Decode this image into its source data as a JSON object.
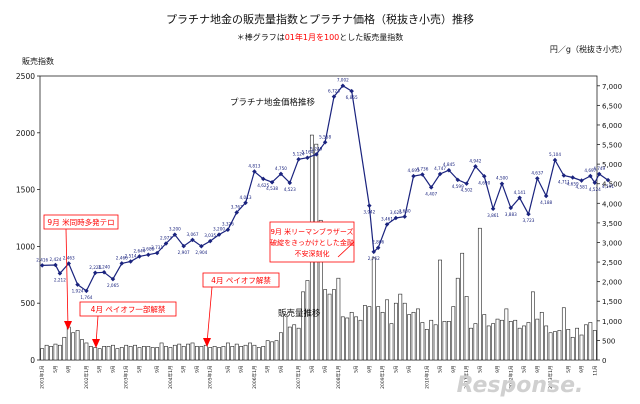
{
  "chart_data": {
    "type": "bar+line",
    "title": "プラチナ地金の販売量指数とプラチナ価格（税抜き小売）推移",
    "subtitle_parts": [
      "＊棒グラフは",
      "01年1月を100",
      "とした販売量指数"
    ],
    "y_left_label": "販売指数",
    "y_right_label": "円／g（税抜き小売）",
    "y_left_ticks": [
      "0",
      "500",
      "1000",
      "1500",
      "2000",
      "2500"
    ],
    "y_right_ticks": [
      "0",
      "500",
      "1,000",
      "1,500",
      "2,000",
      "2,500",
      "3,000",
      "3,500",
      "4,000",
      "4,500",
      "5,000",
      "5,500",
      "6,000",
      "6,500",
      "7,000"
    ],
    "y_left_range": [
      0,
      2500
    ],
    "y_right_range": [
      0,
      7250
    ],
    "x_ticks": [
      "2001年1月",
      "5月",
      "9月",
      "2002年1月",
      "5月",
      "9月",
      "2003年1月",
      "5月",
      "9月",
      "2004年1月",
      "5月",
      "9月",
      "2005年1月",
      "5月",
      "9月",
      "2006年1月",
      "5月",
      "9月",
      "2007年1月",
      "5月",
      "9月",
      "2008年1月",
      "5月",
      "9月",
      "2009年1月",
      "5月",
      "9月",
      "2010年1月",
      "5月",
      "9月",
      "2011年1月",
      "5月",
      "9月",
      "2012年1月",
      "5月",
      "9月",
      "2013年1月",
      "5月",
      "9月",
      "11月"
    ],
    "sales_index": [
      100,
      130,
      120,
      140,
      130,
      200,
      290,
      240,
      260,
      180,
      150,
      120,
      110,
      100,
      120,
      120,
      130,
      100,
      110,
      130,
      120,
      130,
      110,
      120,
      120,
      110,
      110,
      150,
      120,
      110,
      130,
      140,
      120,
      140,
      150,
      120,
      120,
      130,
      110,
      120,
      110,
      120,
      150,
      120,
      140,
      120,
      130,
      150,
      130,
      110,
      120,
      170,
      160,
      170,
      240,
      400,
      290,
      310,
      280,
      600,
      700,
      1980,
      1900,
      1230,
      620,
      580,
      620,
      720,
      380,
      370,
      420,
      380,
      350,
      480,
      470,
      900,
      470,
      420,
      530,
      320,
      500,
      580,
      500,
      400,
      420,
      450,
      330,
      270,
      350,
      310,
      880,
      340,
      340,
      470,
      720,
      940,
      560,
      280,
      320,
      1160,
      400,
      300,
      320,
      360,
      350,
      450,
      340,
      350,
      280,
      300,
      330,
      600,
      360,
      420,
      300,
      240,
      250,
      260,
      460,
      270,
      200,
      280,
      220,
      310,
      330,
      260
    ],
    "price_series_name": "プラチナ地金価格推移",
    "sales_series_name": "販売量推移",
    "price_points": [
      {
        "i": 0,
        "v": 2416
      },
      {
        "i": 3,
        "v": 2424
      },
      {
        "i": 4,
        "v": 2212
      },
      {
        "i": 6,
        "v": 2463
      },
      {
        "i": 8,
        "v": 1924
      },
      {
        "i": 10,
        "v": 1764
      },
      {
        "i": 12,
        "v": 2226
      },
      {
        "i": 14,
        "v": 2240
      },
      {
        "i": 16,
        "v": 2065
      },
      {
        "i": 18,
        "v": 2466
      },
      {
        "i": 20,
        "v": 2514
      },
      {
        "i": 22,
        "v": 2644
      },
      {
        "i": 24,
        "v": 2688
      },
      {
        "i": 26,
        "v": 2731
      },
      {
        "i": 28,
        "v": 2973
      },
      {
        "i": 30,
        "v": 3200
      },
      {
        "i": 32,
        "v": 2907
      },
      {
        "i": 34,
        "v": 3067
      },
      {
        "i": 36,
        "v": 2904
      },
      {
        "i": 38,
        "v": 3035
      },
      {
        "i": 40,
        "v": 3200
      },
      {
        "i": 42,
        "v": 3326
      },
      {
        "i": 44,
        "v": 3767
      },
      {
        "i": 46,
        "v": 4013
      },
      {
        "i": 48,
        "v": 4813
      },
      {
        "i": 50,
        "v": 4625
      },
      {
        "i": 52,
        "v": 4538
      },
      {
        "i": 54,
        "v": 4750
      },
      {
        "i": 56,
        "v": 4523
      },
      {
        "i": 58,
        "v": 5124
      },
      {
        "i": 60,
        "v": 5164
      },
      {
        "i": 62,
        "v": 5249
      },
      {
        "i": 64,
        "v": 5558
      },
      {
        "i": 66,
        "v": 6723
      },
      {
        "i": 68,
        "v": 7002
      },
      {
        "i": 70,
        "v": 6865
      },
      {
        "i": 74,
        "v": 3942
      },
      {
        "i": 75,
        "v": 2762
      },
      {
        "i": 76,
        "v": 2866
      },
      {
        "i": 78,
        "v": 3461
      },
      {
        "i": 80,
        "v": 3625
      },
      {
        "i": 82,
        "v": 3660
      },
      {
        "i": 84,
        "v": 4693
      },
      {
        "i": 86,
        "v": 4736
      },
      {
        "i": 88,
        "v": 4407
      },
      {
        "i": 90,
        "v": 4747
      },
      {
        "i": 92,
        "v": 4845
      },
      {
        "i": 94,
        "v": 4599
      },
      {
        "i": 96,
        "v": 4502
      },
      {
        "i": 98,
        "v": 4942
      },
      {
        "i": 100,
        "v": 4690
      },
      {
        "i": 102,
        "v": 3861
      },
      {
        "i": 104,
        "v": 4500
      },
      {
        "i": 106,
        "v": 3883
      },
      {
        "i": 108,
        "v": 4141
      },
      {
        "i": 110,
        "v": 3723
      },
      {
        "i": 112,
        "v": 4637
      },
      {
        "i": 114,
        "v": 4188
      },
      {
        "i": 116,
        "v": 5104
      },
      {
        "i": 118,
        "v": 4711
      },
      {
        "i": 120,
        "v": 4659
      },
      {
        "i": 122,
        "v": 4581
      },
      {
        "i": 124,
        "v": 4697
      },
      {
        "i": 125,
        "v": 4524
      },
      {
        "i": 126,
        "v": 4749
      },
      {
        "i": 128,
        "v": 4591
      }
    ],
    "annotations": [
      {
        "text": "9月 米同時多発テロ"
      },
      {
        "text": "4月 ペイオフ一部解禁"
      },
      {
        "text": "4月 ペイオフ解禁"
      },
      {
        "lines": [
          "9月 米リーマンブラザーズ",
          "破綻をきっかけとした金融",
          "不安深刻化"
        ]
      }
    ],
    "colors": {
      "line": "#1a237e",
      "bars": "#ffffff",
      "bar_stroke": "#222222",
      "annotation": "#ff0000"
    }
  },
  "watermark": "Response."
}
